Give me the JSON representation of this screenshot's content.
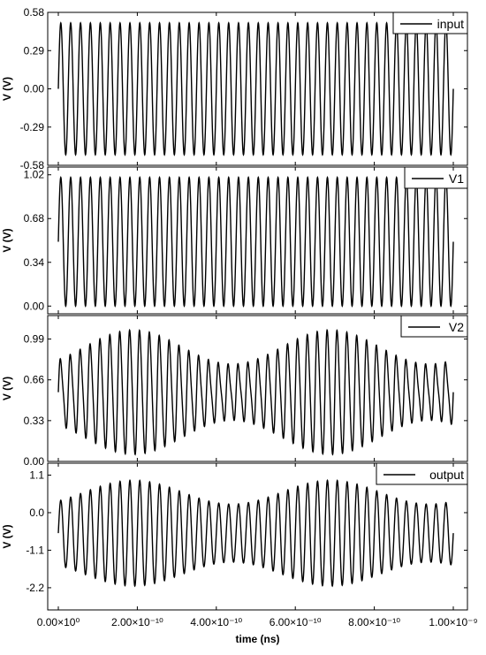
{
  "chart_data": [
    {
      "type": "line",
      "ylabel": "V (V)",
      "yticks": [
        "-0.58",
        "-0.29",
        "0.00",
        "0.29",
        "0.58"
      ],
      "ylim": [
        -0.58,
        0.58
      ],
      "legend": "input",
      "legend_position": "top-right",
      "series": [
        {
          "name": "input",
          "cycles": 40,
          "offset": 0.0,
          "amplitude": 0.5,
          "envelope": "constant"
        }
      ]
    },
    {
      "type": "line",
      "ylabel": "V (V)",
      "yticks": [
        "0.00",
        "0.34",
        "0.68",
        "1.02"
      ],
      "ylim": [
        -0.06,
        1.08
      ],
      "legend": "V1",
      "legend_position": "top-right",
      "series": [
        {
          "name": "V1",
          "cycles": 40,
          "offset": 0.5,
          "amplitude": 0.5,
          "envelope": "constant"
        }
      ]
    },
    {
      "type": "line",
      "ylabel": "V (V)",
      "yticks": [
        "0.00",
        "0.33",
        "0.66",
        "0.99"
      ],
      "ylim": [
        0.0,
        1.18
      ],
      "legend": "V2",
      "legend_position": "top-right",
      "series": [
        {
          "name": "V2",
          "cycles": 40,
          "offset": 0.56,
          "amplitude_range": [
            0.22,
            0.52
          ],
          "envelope": "modulated"
        }
      ]
    },
    {
      "type": "line",
      "ylabel": "V (V)",
      "yticks": [
        "-2.2",
        "-1.1",
        "0.0",
        "1.1"
      ],
      "ylim": [
        -2.85,
        1.45
      ],
      "legend": "output",
      "legend_position": "top-right",
      "series": [
        {
          "name": "output",
          "cycles": 40,
          "offset": -0.6,
          "amplitude_range": [
            0.85,
            1.55
          ],
          "envelope": "modulated"
        }
      ]
    }
  ],
  "x_axis": {
    "label": "time (ns)",
    "xlim": [
      0,
      1e-09
    ],
    "ticks": [
      "0.00×10⁰",
      "2.00×10⁻¹⁰",
      "4.00×10⁻¹⁰",
      "6.00×10⁻¹⁰",
      "8.00×10⁻¹⁰",
      "1.00×10⁻⁹"
    ]
  }
}
